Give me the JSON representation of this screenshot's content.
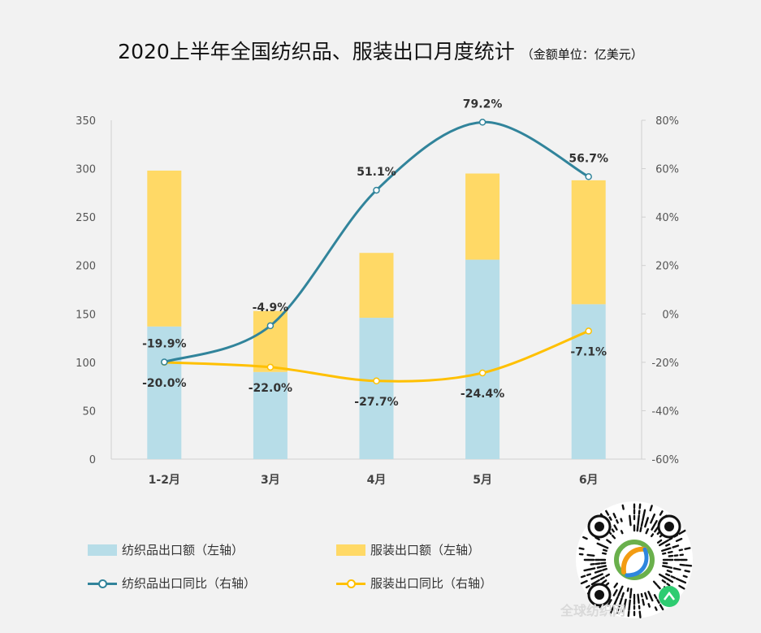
{
  "title": "2020上半年全国纺织品、服装出口月度统计",
  "subtitle": "（金额单位：亿美元）",
  "colors": {
    "textile_bar": "#b7dde8",
    "apparel_bar": "#ffd966",
    "textile_line": "#31849b",
    "apparel_line": "#ffc000"
  },
  "chart_data": {
    "type": "bar",
    "categories": [
      "1-2月",
      "3月",
      "4月",
      "5月",
      "6月"
    ],
    "stacked": true,
    "left_axis": {
      "ylim": [
        0,
        350
      ],
      "ticks": [
        "0",
        "50",
        "100",
        "150",
        "200",
        "250",
        "300",
        "350"
      ]
    },
    "right_axis": {
      "ylim": [
        -60,
        80
      ],
      "ticks": [
        "-60%",
        "-40%",
        "-20%",
        "0%",
        "20%",
        "40%",
        "60%",
        "80%"
      ]
    },
    "series": [
      {
        "name": "纺织品出口额（左轴）",
        "kind": "bar",
        "axis": "left",
        "values": [
          137,
          90,
          146,
          206,
          160
        ]
      },
      {
        "name": "服装出口额（左轴）",
        "kind": "bar",
        "axis": "left",
        "values": [
          161,
          63,
          67,
          89,
          128
        ]
      },
      {
        "name": "纺织品出口同比（右轴）",
        "kind": "line",
        "axis": "right",
        "values": [
          -19.9,
          -4.9,
          51.1,
          79.2,
          56.7
        ],
        "labels": [
          "-19.9%",
          "-4.9%",
          "51.1%",
          "79.2%",
          "56.7%"
        ]
      },
      {
        "name": "服装出口同比（右轴）",
        "kind": "line",
        "axis": "right",
        "values": [
          -20.0,
          -22.0,
          -27.7,
          -24.4,
          -7.1
        ],
        "labels": [
          "-20.0%",
          "-22.0%",
          "-27.7%",
          "-24.4%",
          "-7.1%"
        ]
      }
    ],
    "legend_position": "bottom",
    "grid": false
  },
  "watermark": "全球纺织网"
}
